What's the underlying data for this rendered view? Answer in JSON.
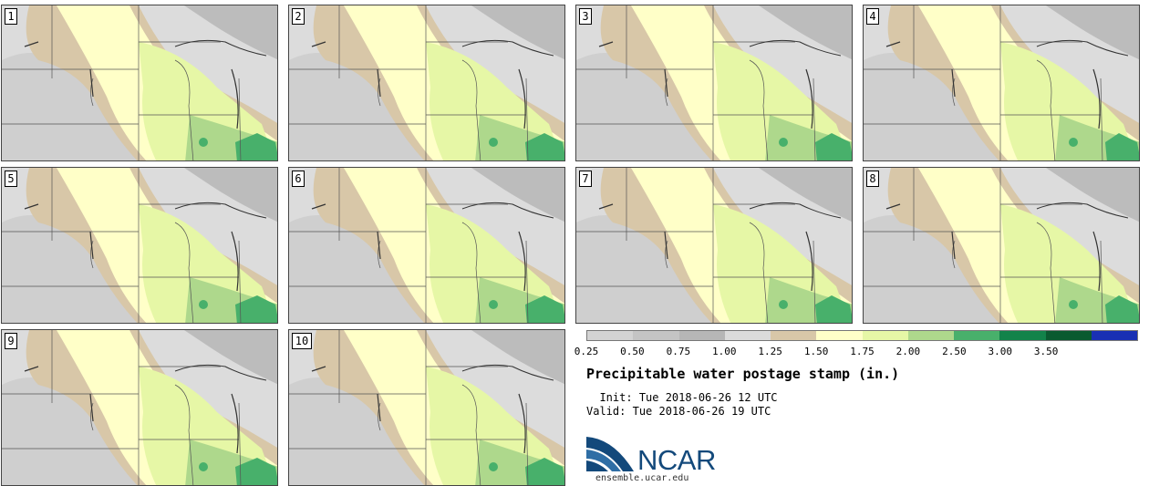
{
  "panels": [
    {
      "label": "1"
    },
    {
      "label": "2"
    },
    {
      "label": "3"
    },
    {
      "label": "4"
    },
    {
      "label": "5"
    },
    {
      "label": "6"
    },
    {
      "label": "7"
    },
    {
      "label": "8"
    },
    {
      "label": "9"
    },
    {
      "label": "10"
    }
  ],
  "colorbar": {
    "colors": [
      "#d3d3d3",
      "#c4c4c4",
      "#b6b6b6",
      "#dbdbdb",
      "#d8c7a8",
      "#ffffc8",
      "#e6f7a6",
      "#aed88c",
      "#48b06b",
      "#12834a",
      "#0a5a30",
      "#1930b4"
    ],
    "ticks": [
      "0.25",
      "0.50",
      "0.75",
      "1.00",
      "1.25",
      "1.50",
      "1.75",
      "2.00",
      "2.50",
      "3.00",
      "3.50"
    ]
  },
  "title": "Precipitable water postage stamp (in.)",
  "init_label": "  Init:",
  "init_value": "Tue 2018-06-26 12 UTC",
  "valid_label": "Valid:",
  "valid_value": "Tue 2018-06-26 19 UTC",
  "logo": {
    "word": "NCAR",
    "url": "ensemble.ucar.edu"
  }
}
